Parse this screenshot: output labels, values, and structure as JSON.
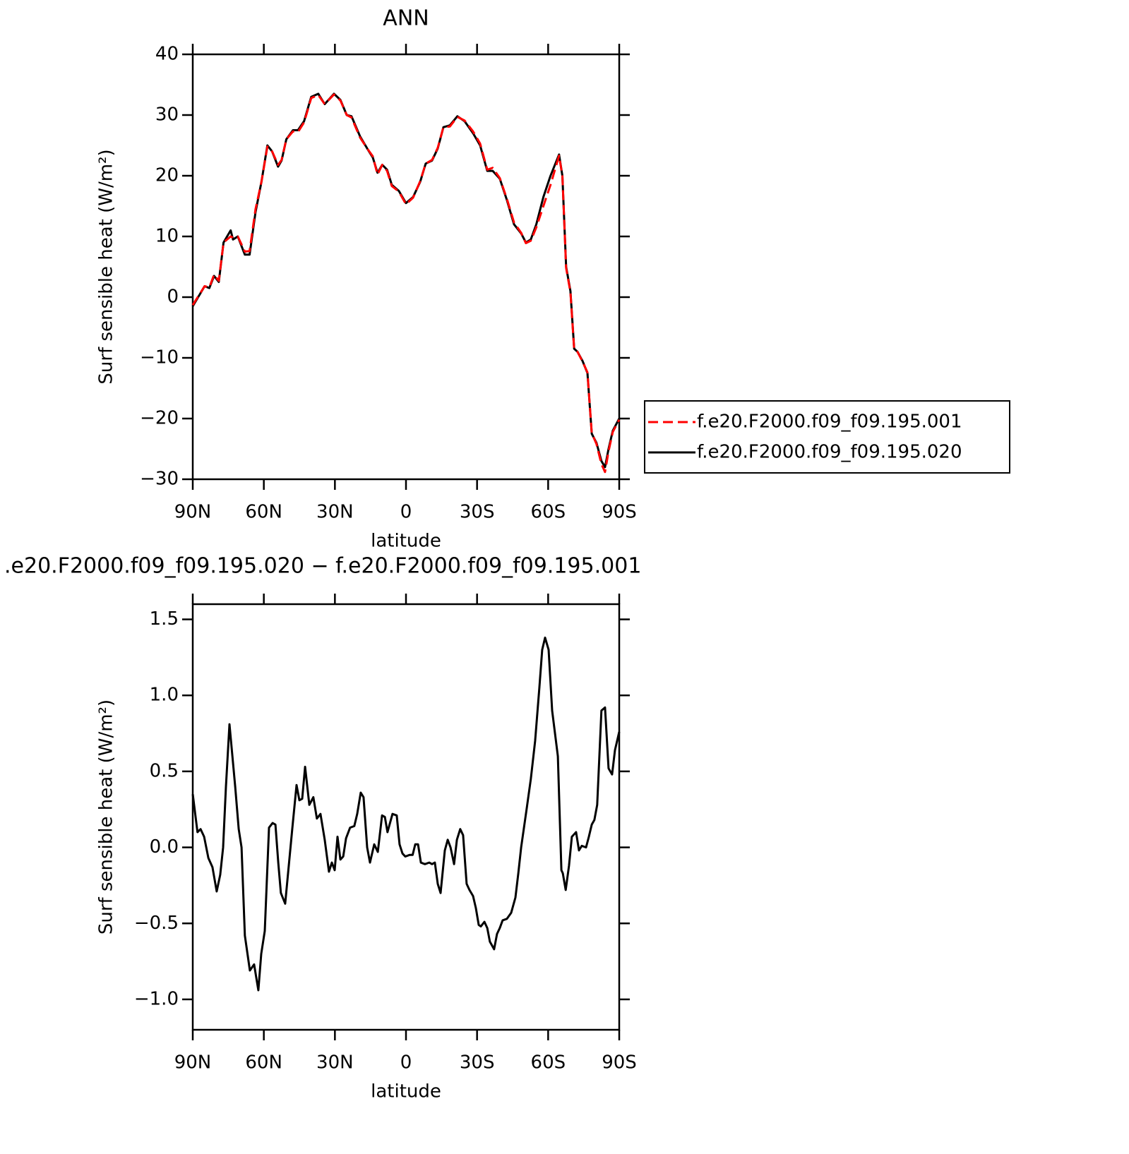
{
  "chart_data": [
    {
      "type": "line",
      "title": "ANN",
      "x_label": "latitude",
      "y_label": "Surf sensible heat (W/m²)",
      "x": [
        90,
        85,
        83,
        81,
        79,
        77,
        74,
        73,
        71,
        68,
        66,
        63.5,
        61,
        58.5,
        56.5,
        54,
        52.5,
        50.5,
        47.7,
        45.6,
        43,
        40,
        37,
        34.3,
        30.4,
        27.7,
        25,
        23,
        19.4,
        16.4,
        14,
        12,
        10,
        8,
        6,
        3,
        0,
        -3,
        -6,
        -8.3,
        -11,
        -13.4,
        -15.8,
        -18.5,
        -21.7,
        -24.7,
        -28.3,
        -31.3,
        -34.3,
        -36.6,
        -39.6,
        -42.6,
        -45.6,
        -48.6,
        -50.6,
        -52.7,
        -55,
        -58,
        -61,
        -64.6,
        -66,
        -67.6,
        -69.4,
        -71,
        -72.4,
        -74.5,
        -76.6,
        -78.4,
        -80.4,
        -82.5,
        -84,
        -85.5,
        -87.3,
        -90
      ],
      "series": [
        {
          "name": "f.e20.F2000.f09_f09.195.001",
          "color": "#ff0000",
          "dash": true,
          "values": [
            -1.3,
            1.8,
            1.6,
            3.7,
            2.7,
            9,
            10,
            9.8,
            10,
            7.5,
            7.6,
            14.5,
            19,
            24.8,
            24,
            21.8,
            22.6,
            26,
            27.3,
            27.2,
            28.8,
            32.8,
            33.3,
            31.8,
            33.4,
            32.4,
            30,
            29.6,
            26.3,
            24.5,
            23.2,
            20.2,
            21.8,
            20.8,
            18.3,
            17.4,
            15.3,
            16.4,
            19.1,
            22,
            22.6,
            24.6,
            28,
            28.1,
            29.7,
            29.1,
            27.3,
            25.3,
            21,
            21.3,
            19.6,
            16.2,
            12.3,
            10.6,
            8.9,
            9.3,
            11.5,
            15,
            18.5,
            23.3,
            20,
            4.8,
            0.8,
            -8.6,
            -9,
            -10.6,
            -12.4,
            -22.4,
            -24.2,
            -27.5,
            -28.8,
            -25.4,
            -22.2,
            -20.2
          ]
        },
        {
          "name": "f.e20.F2000.f09_f09.195.020",
          "color": "#000000",
          "dash": false,
          "values": [
            -1.5,
            1.8,
            1.5,
            3.5,
            2.5,
            9,
            11,
            9.5,
            10,
            7,
            7,
            14,
            19,
            25,
            24,
            21.5,
            22.5,
            26,
            27.5,
            27.5,
            29,
            33,
            33.5,
            31.8,
            33.5,
            32.5,
            30,
            29.8,
            26.5,
            24.5,
            23,
            20.5,
            21.8,
            21,
            18.5,
            17.5,
            15.5,
            16.5,
            19,
            22,
            22.5,
            24.5,
            28,
            28.3,
            29.8,
            29,
            27,
            25,
            20.8,
            20.8,
            19.5,
            16,
            12,
            10.5,
            9,
            9.5,
            12,
            16.5,
            20,
            23.5,
            20,
            5,
            1,
            -8.5,
            -9,
            -10.5,
            -12.5,
            -22.5,
            -24,
            -27,
            -28,
            -25,
            -22,
            -20
          ]
        }
      ],
      "xlim": [
        90,
        -90
      ],
      "xticks": [
        {
          "value": 90,
          "label": "90N"
        },
        {
          "value": 60,
          "label": "60N"
        },
        {
          "value": 30,
          "label": "30N"
        },
        0,
        {
          "value": -30,
          "label": "30S"
        },
        {
          "value": -60,
          "label": "60S"
        },
        {
          "value": -90,
          "label": "90S"
        }
      ],
      "ylim": [
        -30,
        40
      ],
      "yticks": [
        {
          "value": -30,
          "label": "−30"
        },
        {
          "value": -20,
          "label": "−20"
        },
        {
          "value": -10,
          "label": "−10"
        },
        0,
        10,
        20,
        30,
        40
      ],
      "legend": "right"
    },
    {
      "type": "line",
      "title": ".e20.F2000.f09_f09.195.020 − f.e20.F2000.f09_f09.195.001",
      "x_label": "latitude",
      "y_label": "Surf sensible heat (W/m²)",
      "x": [
        90,
        88,
        86.7,
        85.2,
        83.4,
        81.7,
        79.9,
        78.4,
        77.2,
        76,
        74.5,
        72.1,
        70.6,
        69.4,
        68,
        65.9,
        64.1,
        62.3,
        61.1,
        59.6,
        57.8,
        56.3,
        55.1,
        53.9,
        52.8,
        51,
        48,
        46.2,
        45,
        43.8,
        42.6,
        40.8,
        39.1,
        37.6,
        36.1,
        34.3,
        32.5,
        31.3,
        30.1,
        28.9,
        27.7,
        26.5,
        25.3,
        23.6,
        21.8,
        20.6,
        19.1,
        17.9,
        16.4,
        15.2,
        13.4,
        11.9,
        10.1,
        8.9,
        7.8,
        5.7,
        3.9,
        2.7,
        1.5,
        0.3,
        -1.5,
        -2.8,
        -3.9,
        -5.1,
        -6.3,
        -8,
        -9.8,
        -11,
        -12.2,
        -13.4,
        -14.6,
        -16.4,
        -17.6,
        -18.8,
        -20.3,
        -21.5,
        -22.9,
        -24.1,
        -25.6,
        -26.8,
        -28.3,
        -29.5,
        -30.7,
        -31.6,
        -33.1,
        -34.3,
        -35.4,
        -37.2,
        -38.4,
        -39.6,
        -40.8,
        -42.6,
        -44.4,
        -46.2,
        -47.4,
        -48.6,
        -50.9,
        -52.7,
        -54.5,
        -56.3,
        -57.5,
        -58.7,
        -60.2,
        -61.7,
        -64.1,
        -65.6,
        -66.2,
        -67.4,
        -68.8,
        -70,
        -71.8,
        -73,
        -74.2,
        -76,
        -77.2,
        -78.4,
        -79.5,
        -80.7,
        -82.5,
        -84,
        -85.5,
        -87,
        -88.2,
        -90
      ],
      "series": [
        {
          "color": "#000000",
          "dash": false,
          "values": [
            0.35,
            0.1,
            0.12,
            0.07,
            -0.07,
            -0.13,
            -0.29,
            -0.18,
            0,
            0.4,
            0.81,
            0.4,
            0.12,
            0,
            -0.58,
            -0.81,
            -0.77,
            -0.94,
            -0.7,
            -0.55,
            0.13,
            0.16,
            0.15,
            -0.1,
            -0.3,
            -0.37,
            0.12,
            0.41,
            0.31,
            0.32,
            0.53,
            0.28,
            0.33,
            0.19,
            0.22,
            0.05,
            -0.16,
            -0.1,
            -0.15,
            0.07,
            -0.08,
            -0.06,
            0.06,
            0.13,
            0.14,
            0.22,
            0.36,
            0.33,
            0,
            -0.1,
            0.02,
            -0.03,
            0.21,
            0.2,
            0.1,
            0.22,
            0.21,
            0.02,
            -0.04,
            -0.06,
            -0.05,
            -0.05,
            0.02,
            0.02,
            -0.1,
            -0.11,
            -0.1,
            -0.11,
            -0.1,
            -0.24,
            -0.3,
            -0.02,
            0.05,
            0,
            -0.11,
            0.05,
            0.12,
            0.08,
            -0.24,
            -0.28,
            -0.32,
            -0.4,
            -0.51,
            -0.52,
            -0.49,
            -0.53,
            -0.62,
            -0.67,
            -0.57,
            -0.53,
            -0.48,
            -0.47,
            -0.43,
            -0.33,
            -0.17,
            0,
            0.25,
            0.45,
            0.7,
            1.05,
            1.3,
            1.38,
            1.3,
            0.9,
            0.6,
            -0.15,
            -0.17,
            -0.28,
            -0.12,
            0.07,
            0.1,
            -0.02,
            0.01,
            0,
            0.07,
            0.15,
            0.18,
            0.28,
            0.9,
            0.92,
            0.52,
            0.48,
            0.64,
            0.76
          ]
        }
      ],
      "xlim": [
        90,
        -90
      ],
      "xticks": [
        {
          "value": 90,
          "label": "90N"
        },
        {
          "value": 60,
          "label": "60N"
        },
        {
          "value": 30,
          "label": "30N"
        },
        0,
        {
          "value": -30,
          "label": "30S"
        },
        {
          "value": -60,
          "label": "60S"
        },
        {
          "value": -90,
          "label": "90S"
        }
      ],
      "ylim": [
        -1.2,
        1.6
      ],
      "yticks": [
        {
          "value": -1,
          "label": "−1.0"
        },
        {
          "value": -0.5,
          "label": "−0.5"
        },
        {
          "value": 0,
          "label": "0.0"
        },
        0.5,
        {
          "value": 1,
          "label": "1.0"
        },
        1.5
      ]
    }
  ]
}
